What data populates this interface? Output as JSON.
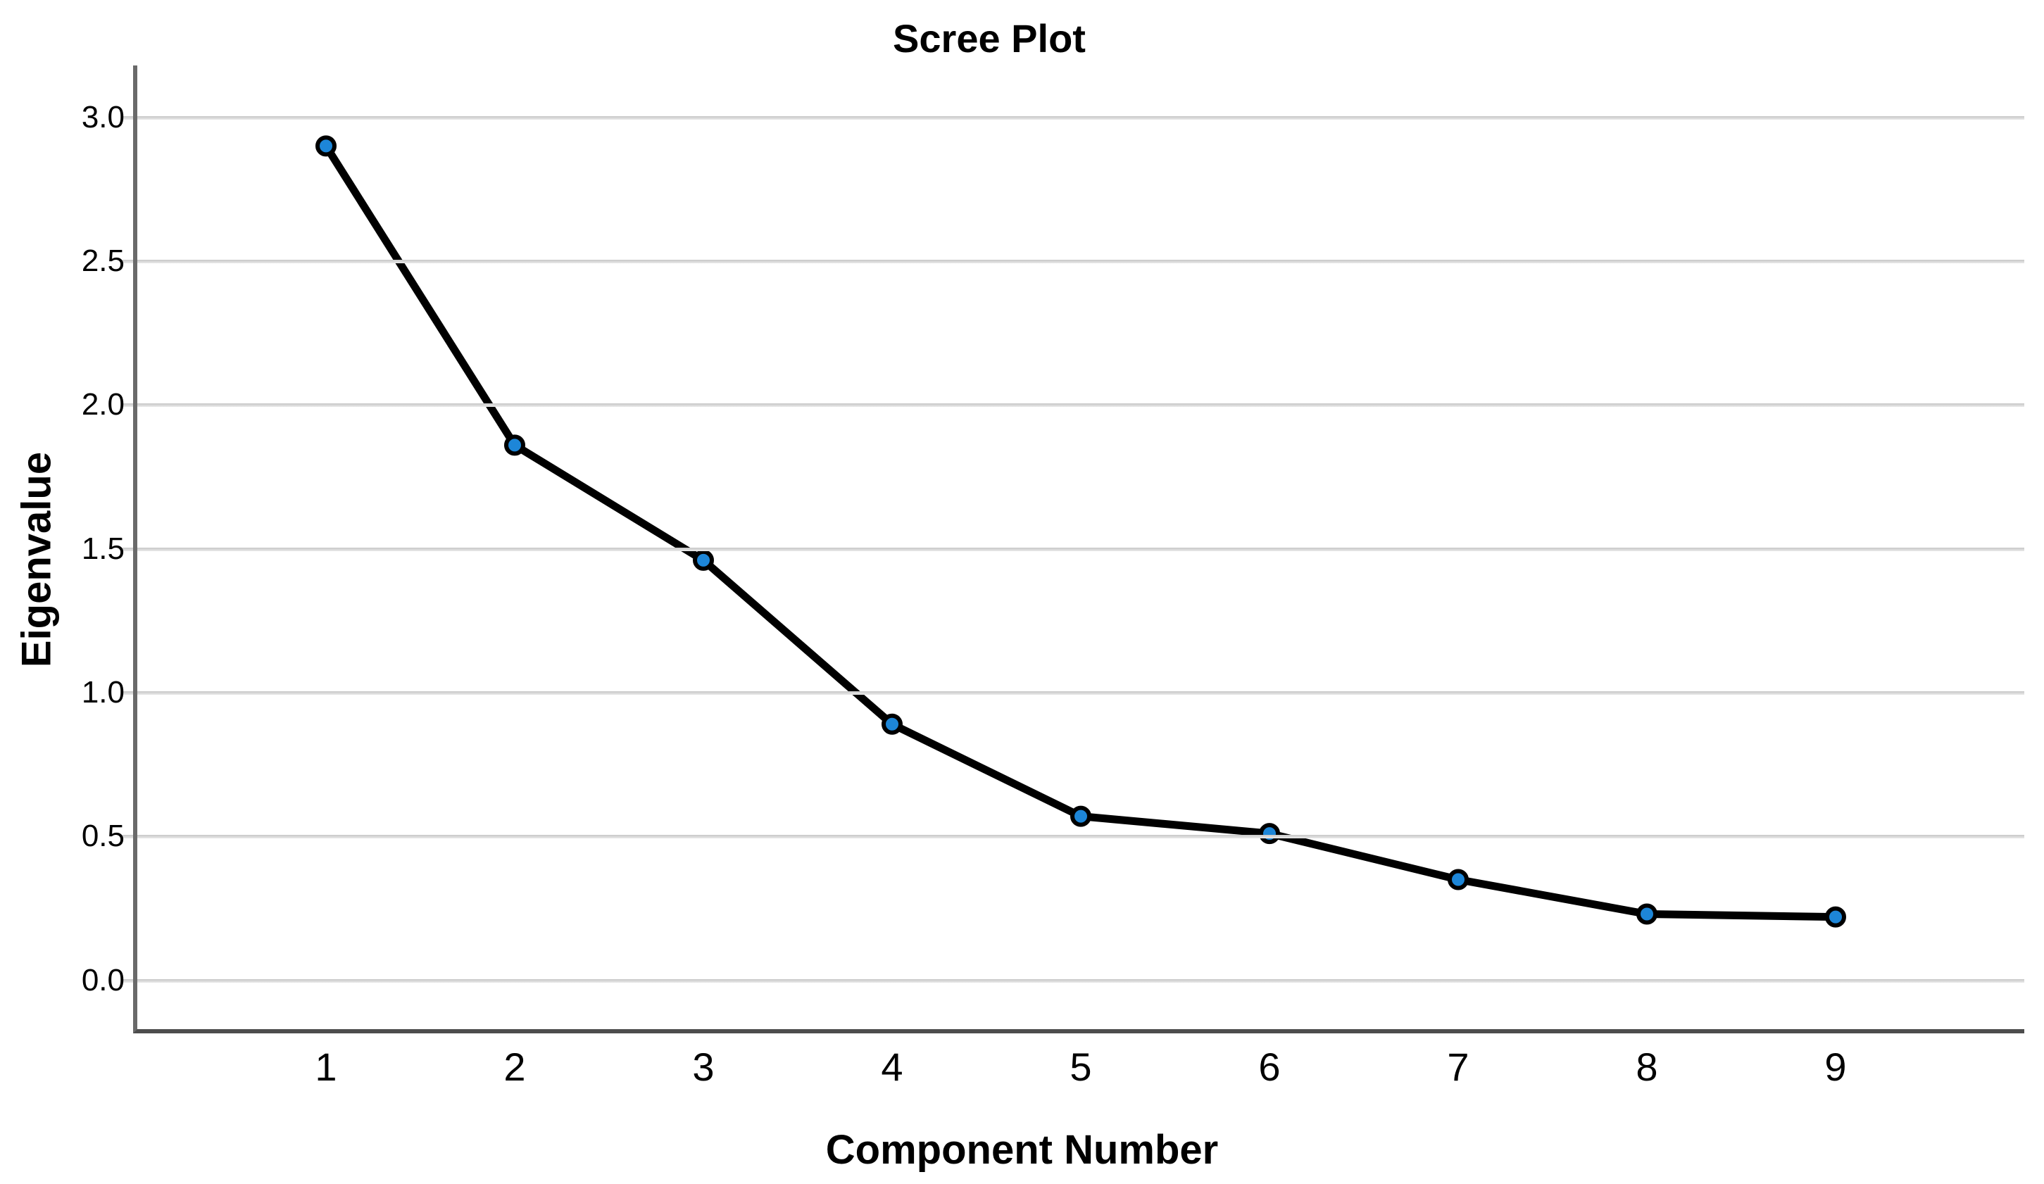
{
  "chart_data": {
    "type": "line",
    "title": "Scree Plot",
    "xlabel": "Component Number",
    "ylabel": "Eigenvalue",
    "x": [
      1,
      2,
      3,
      4,
      5,
      6,
      7,
      8,
      9
    ],
    "series": [
      {
        "name": "Eigenvalue",
        "values": [
          2.9,
          1.86,
          1.46,
          0.89,
          0.57,
          0.51,
          0.35,
          0.23,
          0.22
        ]
      }
    ],
    "x_tick_labels": [
      "1",
      "2",
      "3",
      "4",
      "5",
      "6",
      "7",
      "8",
      "9"
    ],
    "y_tick_labels": [
      "0.0",
      "0.5",
      "1.0",
      "1.5",
      "2.0",
      "2.5",
      "3.0"
    ],
    "y_tick_values": [
      0.0,
      0.5,
      1.0,
      1.5,
      2.0,
      2.5,
      3.0
    ],
    "xlim": [
      0,
      10
    ],
    "ylim": [
      -0.17,
      3.18
    ],
    "grid": "horizontal",
    "legend": "none",
    "colors": {
      "line": "#000000",
      "marker_fill": "#1d86d8",
      "marker_stroke": "#000000",
      "grid": "#d0d0d0",
      "axis": "#4d4d4d",
      "text": "#000000",
      "background": "#ffffff"
    }
  }
}
